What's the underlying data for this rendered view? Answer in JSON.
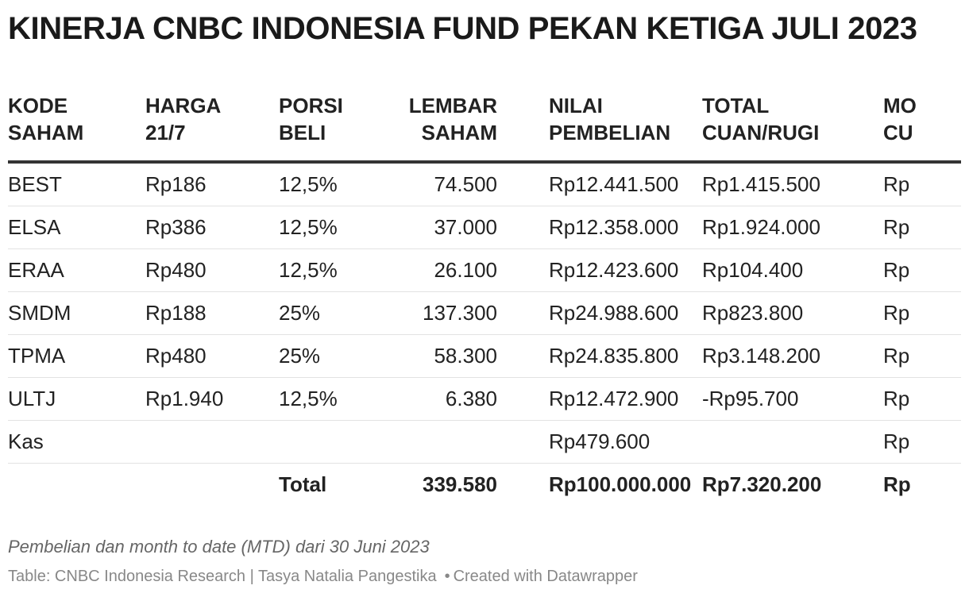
{
  "title": "KINERJA CNBC INDONESIA FUND PEKAN KETIGA JULI 2023",
  "chart_data": {
    "type": "table",
    "columns": [
      [
        "KODE",
        "SAHAM"
      ],
      [
        "HARGA",
        "21/7"
      ],
      [
        "PORSI",
        "BELI"
      ],
      [
        "LEMBAR",
        "SAHAM"
      ],
      [
        "NILAI",
        "PEMBELIAN"
      ],
      [
        "TOTAL",
        "CUAN/RUGI"
      ],
      [
        "MO",
        "CU"
      ]
    ],
    "rows": [
      [
        "BEST",
        "Rp186",
        "12,5%",
        "74.500",
        "Rp12.441.500",
        "Rp1.415.500",
        "Rp"
      ],
      [
        "ELSA",
        "Rp386",
        "12,5%",
        "37.000",
        "Rp12.358.000",
        "Rp1.924.000",
        "Rp"
      ],
      [
        "ERAA",
        "Rp480",
        "12,5%",
        "26.100",
        "Rp12.423.600",
        "Rp104.400",
        "Rp"
      ],
      [
        "SMDM",
        "Rp188",
        "25%",
        "137.300",
        "Rp24.988.600",
        "Rp823.800",
        "Rp"
      ],
      [
        "TPMA",
        "Rp480",
        "25%",
        "58.300",
        "Rp24.835.800",
        "Rp3.148.200",
        "Rp"
      ],
      [
        "ULTJ",
        "Rp1.940",
        "12,5%",
        "6.380",
        "Rp12.472.900",
        "-Rp95.700",
        "Rp"
      ],
      [
        "Kas",
        "",
        "",
        "",
        "Rp479.600",
        "",
        "Rp"
      ]
    ],
    "total_row": [
      "",
      "",
      "Total",
      "339.580",
      "Rp100.000.000",
      "Rp7.320.200",
      "Rp"
    ]
  },
  "footer": {
    "note": "Pembelian dan month to date (MTD) dari 30 Juni 2023",
    "source_prefix": "Table: CNBC Indonesia Research | Tasya Natalia Pangestika",
    "bullet": "•",
    "credit": "Created with Datawrapper"
  }
}
